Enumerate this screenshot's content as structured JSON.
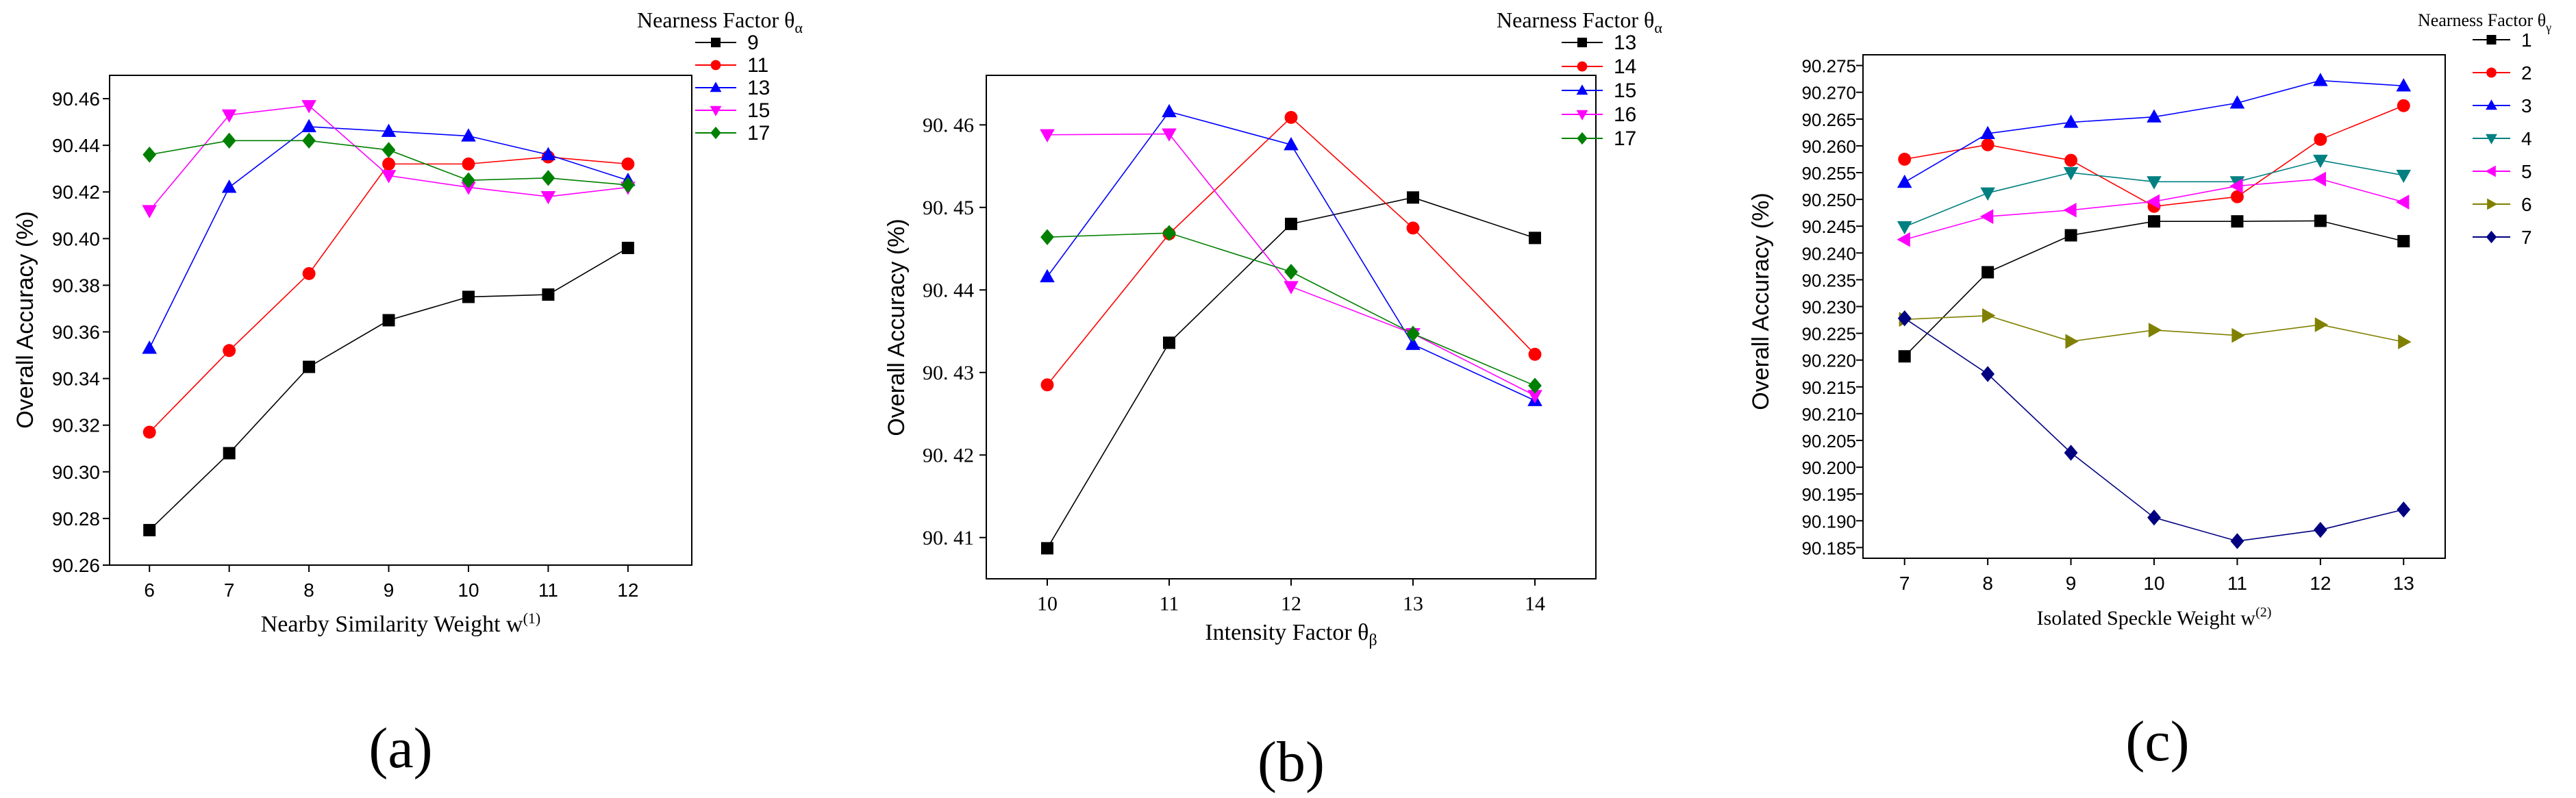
{
  "chart_data": [
    {
      "type": "line",
      "panel_label": "(a)",
      "xlabel": "Nearby Similarity Weight w",
      "xlabel_sup": "(1)",
      "ylabel": "Overall Accuracy (%)",
      "legend_title": "Nearness Factor θ",
      "legend_title_sub": "α",
      "x": [
        6,
        7,
        8,
        9,
        10,
        11,
        12
      ],
      "xlim": [
        5.5,
        12.8
      ],
      "ylim": [
        90.26,
        90.47
      ],
      "yticks": [
        "90.26",
        "90.28",
        "90.30",
        "90.32",
        "90.34",
        "90.36",
        "90.38",
        "90.40",
        "90.42",
        "90.44",
        "90.46"
      ],
      "series": [
        {
          "name": "9",
          "color": "#000000",
          "marker": "square",
          "values": [
            90.275,
            90.308,
            90.345,
            90.365,
            90.375,
            90.376,
            90.396
          ]
        },
        {
          "name": "11",
          "color": "#ff0000",
          "marker": "circle",
          "values": [
            90.317,
            90.352,
            90.385,
            90.432,
            90.432,
            90.435,
            90.432
          ]
        },
        {
          "name": "13",
          "color": "#0000ff",
          "marker": "triangle-up",
          "values": [
            90.353,
            90.422,
            90.448,
            90.446,
            90.444,
            90.436,
            90.425
          ]
        },
        {
          "name": "15",
          "color": "#ff00ff",
          "marker": "triangle-down",
          "values": [
            90.412,
            90.453,
            90.457,
            90.427,
            90.422,
            90.418,
            90.422
          ]
        },
        {
          "name": "17",
          "color": "#008000",
          "marker": "diamond",
          "values": [
            90.436,
            90.442,
            90.442,
            90.438,
            90.425,
            90.426,
            90.423
          ]
        }
      ]
    },
    {
      "type": "line",
      "panel_label": "(b)",
      "xlabel": "Intensity Factor θ",
      "xlabel_sub": "β",
      "ylabel": "Overall Accuracy (%)",
      "legend_title": "Nearness Factor θ",
      "legend_title_sub": "α",
      "x": [
        10,
        11,
        12,
        13,
        14
      ],
      "xlim": [
        9.5,
        14.5
      ],
      "ylim": [
        90.405,
        90.466
      ],
      "yticks": [
        "90. 41",
        "90. 42",
        "90. 43",
        "90. 44",
        "90. 45",
        "90. 46"
      ],
      "ytick_values": [
        90.41,
        90.42,
        90.43,
        90.44,
        90.45,
        90.46
      ],
      "series": [
        {
          "name": "13",
          "color": "#000000",
          "marker": "square",
          "values": [
            90.4087,
            90.4336,
            90.448,
            90.4512,
            90.4463
          ]
        },
        {
          "name": "14",
          "color": "#ff0000",
          "marker": "circle",
          "values": [
            90.4285,
            90.4468,
            90.4609,
            90.4475,
            90.4322
          ]
        },
        {
          "name": "15",
          "color": "#0000ff",
          "marker": "triangle-up",
          "values": [
            90.4416,
            90.4616,
            90.4576,
            90.4334,
            90.4266
          ]
        },
        {
          "name": "16",
          "color": "#ff00ff",
          "marker": "triangle-down",
          "values": [
            90.4588,
            90.4589,
            90.4404,
            90.4347,
            90.4272
          ]
        },
        {
          "name": "17",
          "color": "#008000",
          "marker": "diamond",
          "values": [
            90.4464,
            90.4469,
            90.4422,
            90.4347,
            90.4284
          ]
        }
      ]
    },
    {
      "type": "line",
      "panel_label": "(c)",
      "xlabel": "Isolated Speckle Weight w",
      "xlabel_sup": "(2)",
      "ylabel": "Overall Accuracy (%)",
      "legend_title": "Nearness Factor θ",
      "legend_title_sub": "γ",
      "x": [
        7,
        8,
        9,
        10,
        11,
        12,
        13
      ],
      "xlim": [
        6.5,
        13.5
      ],
      "ylim": [
        90.183,
        90.277
      ],
      "yticks": [
        "90.185",
        "90.190",
        "90.195",
        "90.200",
        "90.205",
        "90.210",
        "90.215",
        "90.220",
        "90.225",
        "90.230",
        "90.235",
        "90.240",
        "90.245",
        "90.250",
        "90.255",
        "90.260",
        "90.265",
        "90.270",
        "90.275"
      ],
      "series": [
        {
          "name": "1",
          "color": "#000000",
          "marker": "square",
          "values": [
            90.2207,
            90.2364,
            90.2433,
            90.2459,
            90.2459,
            90.246,
            90.2422
          ]
        },
        {
          "name": "2",
          "color": "#ff0000",
          "marker": "circle",
          "values": [
            90.2575,
            90.2602,
            90.2573,
            90.2487,
            90.2505,
            90.2612,
            90.2675
          ]
        },
        {
          "name": "3",
          "color": "#0000ff",
          "marker": "triangle-up",
          "values": [
            90.2532,
            90.2623,
            90.2644,
            90.2654,
            90.268,
            90.2722,
            90.2712
          ]
        },
        {
          "name": "4",
          "color": "#008080",
          "marker": "triangle-down",
          "values": [
            90.2449,
            90.2512,
            90.255,
            90.2533,
            90.2533,
            90.2573,
            90.2545
          ]
        },
        {
          "name": "5",
          "color": "#ff00ff",
          "marker": "triangle-left",
          "values": [
            90.2425,
            90.2468,
            90.248,
            90.2496,
            90.2525,
            90.2538,
            90.2495
          ]
        },
        {
          "name": "6",
          "color": "#808000",
          "marker": "triangle-right",
          "values": [
            90.2276,
            90.2283,
            90.2235,
            90.2256,
            90.2246,
            90.2266,
            90.2234
          ]
        },
        {
          "name": "7",
          "color": "#000080",
          "marker": "diamond",
          "values": [
            90.2278,
            90.2174,
            90.2027,
            90.1906,
            90.1862,
            90.1883,
            90.1921
          ]
        }
      ]
    }
  ]
}
